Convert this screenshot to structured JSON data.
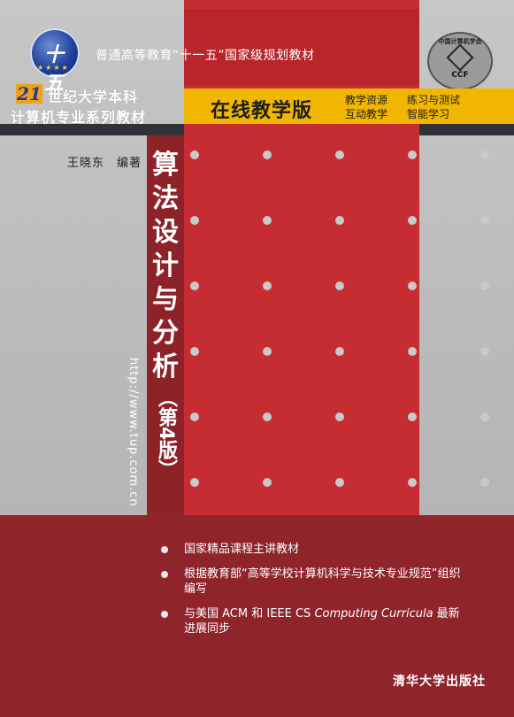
{
  "tagline": "普通高等教育“十一五”国家级规划教材",
  "logo": {
    "text": "十五",
    "icon": "five-year-plan-logo-icon"
  },
  "series": {
    "badge_number": "21",
    "line1": "世纪大学本科",
    "line2": "计算机专业系列教材"
  },
  "ccf_badge": {
    "ring_text": "中国计算机学会",
    "acronym": "CCF",
    "icon": "ccf-logo-icon"
  },
  "online_edition": {
    "title": "在线教学版",
    "features": [
      "教学资源",
      "练习与测试",
      "互动教学",
      "智能学习"
    ]
  },
  "author": "王晓东　编著",
  "book_title_chars": [
    "算",
    "法",
    "设",
    "计",
    "与",
    "分",
    "析"
  ],
  "edition": "（第4版）",
  "url": "http://www.tup.com.cn",
  "bullets": [
    {
      "text": "国家精品课程主讲教材"
    },
    {
      "text": "根据教育部“高等学校计算机科学与技术专业规范”组织编写"
    },
    {
      "text_prefix": "与美国 ACM 和 IEEE CS ",
      "text_italic": "Computing Curricula",
      "text_suffix": " 最新进展同步"
    }
  ],
  "publisher": "清华大学出版社",
  "colors": {
    "red": "#c62d33",
    "dark_red": "#8f242b",
    "gold": "#f1b600",
    "gray": "#bdbdbd"
  }
}
